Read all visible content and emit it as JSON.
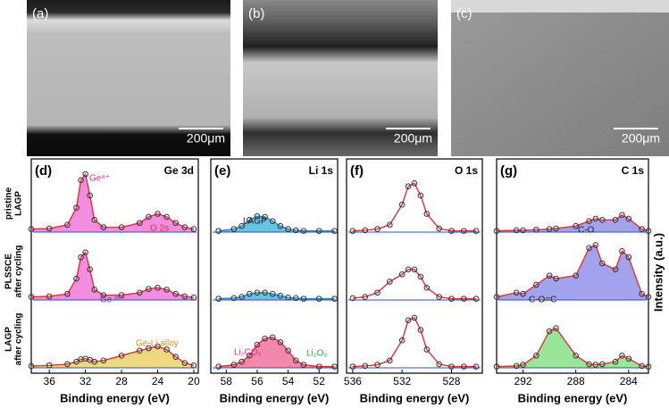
{
  "images": [
    {
      "label": "(a)",
      "scale": "200μm"
    },
    {
      "label": "(b)",
      "scale": "200μm"
    },
    {
      "label": "(c)",
      "scale": "200μm"
    }
  ],
  "row_labels": [
    [
      "pristine",
      "LAGP"
    ],
    [
      "PLSSCE",
      "after cycling"
    ],
    [
      "LAGP",
      "after cycling"
    ]
  ],
  "y_label": "Intensity (a.u.)",
  "chart_data": [
    {
      "type": "line",
      "panel": "(d)",
      "title": "Ge 3d",
      "x_label": "Binding energy (eV)",
      "xlim": [
        38,
        19.5
      ],
      "xticks": [
        36,
        32,
        28,
        24,
        20
      ],
      "x": [
        38,
        36,
        34,
        33,
        32.5,
        32,
        31.5,
        31,
        30,
        28,
        26,
        25,
        24,
        23,
        22,
        21,
        20
      ],
      "series": [
        {
          "color": "#e0303a",
          "fill": "#f070d8",
          "values": [
            0.05,
            0.06,
            0.12,
            0.4,
            0.85,
            0.95,
            0.6,
            0.2,
            0.08,
            0.08,
            0.15,
            0.25,
            0.3,
            0.25,
            0.15,
            0.08,
            0.05
          ]
        },
        {
          "color": "#e0303a",
          "fill": "#f070d8",
          "values": [
            0.05,
            0.06,
            0.1,
            0.35,
            0.7,
            0.78,
            0.5,
            0.17,
            0.08,
            0.08,
            0.12,
            0.18,
            0.2,
            0.17,
            0.1,
            0.06,
            0.04
          ]
        },
        {
          "color": "#e0303a",
          "fill": "#e8d060",
          "values": [
            0.03,
            0.04,
            0.06,
            0.1,
            0.14,
            0.15,
            0.13,
            0.1,
            0.12,
            0.2,
            0.28,
            0.32,
            0.35,
            0.3,
            0.18,
            0.08,
            0.04
          ]
        }
      ],
      "annotations": [
        {
          "text": "Ge⁴⁺",
          "color": "#e0308a"
        },
        {
          "text": "O 2s",
          "color": "#e0303a"
        },
        {
          "text": "Ge ᵐ⁺",
          "color": "#6040a0"
        },
        {
          "text": "Ge-Li alloy",
          "color": "#e09020"
        }
      ]
    },
    {
      "type": "line",
      "panel": "(e)",
      "title": "Li 1s",
      "x_label": "Binding energy (eV)",
      "xlim": [
        59,
        50.8
      ],
      "xticks": [
        58,
        56,
        54,
        52
      ],
      "x": [
        58.5,
        57.5,
        57,
        56.5,
        56,
        55.5,
        55,
        54.5,
        54,
        53.5,
        53,
        52,
        51
      ],
      "series": [
        {
          "color": "#3080c0",
          "fill": "#3fb4e0",
          "values": [
            0.02,
            0.05,
            0.1,
            0.2,
            0.26,
            0.25,
            0.18,
            0.1,
            0.05,
            0.03,
            0.02,
            0.02,
            0.02
          ]
        },
        {
          "color": "#3080c0",
          "fill": "#3fb4e0",
          "values": [
            0.02,
            0.03,
            0.05,
            0.1,
            0.12,
            0.12,
            0.1,
            0.07,
            0.04,
            0.03,
            0.02,
            0.02,
            0.02
          ]
        },
        {
          "color": "#e0303a",
          "fill": "#f06a9a",
          "values": [
            0.02,
            0.05,
            0.1,
            0.2,
            0.38,
            0.48,
            0.5,
            0.42,
            0.28,
            0.12,
            0.05,
            0.02,
            0.02
          ]
        }
      ],
      "annotations": [
        {
          "text": "LAGP",
          "color": "#222222"
        },
        {
          "text": "Li₂CO₃",
          "color": "#e0308a"
        },
        {
          "text": "Li₂O₂",
          "color": "#20b040"
        }
      ]
    },
    {
      "type": "line",
      "panel": "(f)",
      "title": "O 1s",
      "x_label": "Binding energy (eV)",
      "xlim": [
        536.5,
        525.5
      ],
      "xticks": [
        536,
        532,
        528
      ],
      "x": [
        536,
        535,
        534,
        533,
        532,
        531.5,
        531,
        530.5,
        530,
        529,
        528,
        527,
        526
      ],
      "series": [
        {
          "color": "#e0303a",
          "values": [
            0.02,
            0.03,
            0.05,
            0.12,
            0.45,
            0.75,
            0.8,
            0.6,
            0.3,
            0.06,
            0.02,
            0.02,
            0.02
          ]
        },
        {
          "color": "#e0303a",
          "values": [
            0.03,
            0.05,
            0.12,
            0.3,
            0.42,
            0.5,
            0.5,
            0.38,
            0.2,
            0.05,
            0.02,
            0.02,
            0.02
          ]
        },
        {
          "color": "#e0303a",
          "values": [
            0.02,
            0.03,
            0.05,
            0.12,
            0.45,
            0.78,
            0.82,
            0.62,
            0.3,
            0.06,
            0.02,
            0.02,
            0.02
          ]
        }
      ],
      "annotations": []
    },
    {
      "type": "line",
      "panel": "(g)",
      "title": "C 1s",
      "x_label": "Binding energy (eV)",
      "xlim": [
        294,
        282.5
      ],
      "xticks": [
        292,
        288,
        284
      ],
      "x": [
        294,
        292.5,
        292,
        291,
        290,
        289.5,
        288,
        287,
        286.5,
        286,
        285,
        284.5,
        284,
        283,
        282.5
      ],
      "series": [
        {
          "color": "#e0303a",
          "fill": "#8b8be8",
          "values": [
            0.02,
            0.03,
            0.03,
            0.04,
            0.05,
            0.06,
            0.1,
            0.18,
            0.22,
            0.2,
            0.2,
            0.28,
            0.22,
            0.05,
            0.02
          ]
        },
        {
          "color": "#e0303a",
          "fill": "#8b8be8",
          "values": [
            0.05,
            0.12,
            0.1,
            0.25,
            0.4,
            0.35,
            0.4,
            0.85,
            0.9,
            0.6,
            0.5,
            0.8,
            0.7,
            0.1,
            0.05
          ]
        },
        {
          "color": "#e0303a",
          "fill": "#80e080",
          "values": [
            0.02,
            0.03,
            0.05,
            0.2,
            0.6,
            0.65,
            0.2,
            0.06,
            0.05,
            0.06,
            0.1,
            0.2,
            0.15,
            0.03,
            0.02
          ]
        }
      ],
      "annotations": [
        {
          "text": "C-O",
          "color": "#222222"
        },
        {
          "text": "C-O=C",
          "color": "#222222"
        }
      ]
    }
  ]
}
